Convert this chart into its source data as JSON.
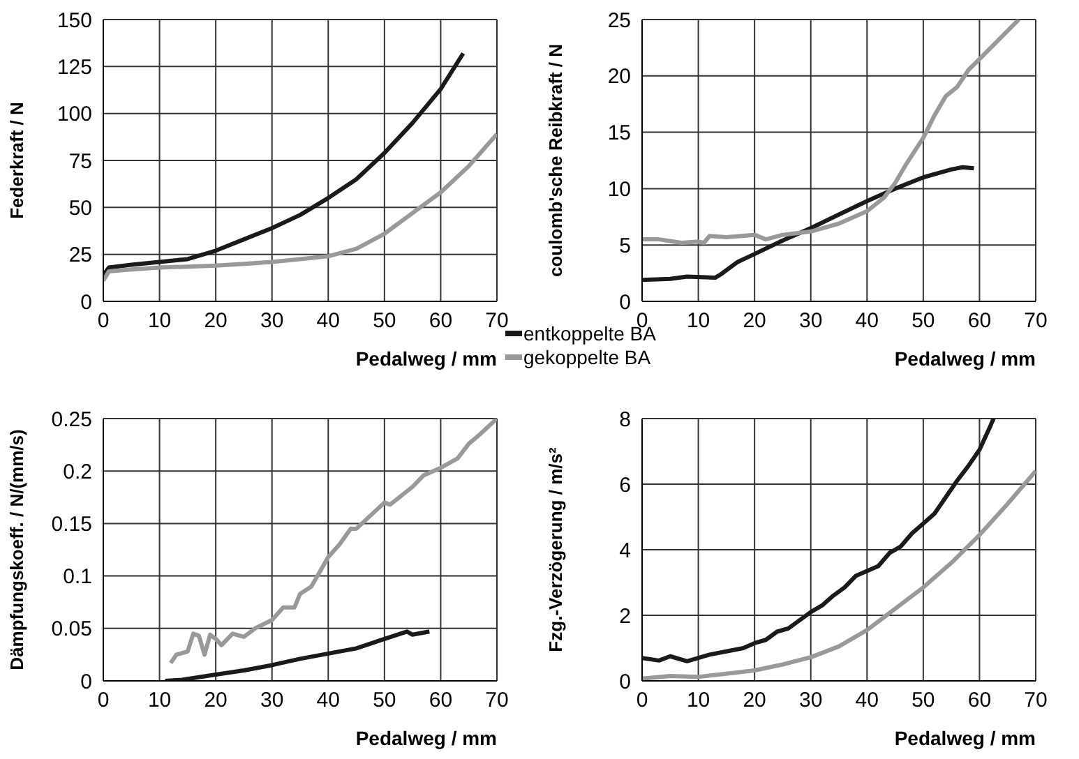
{
  "chart_data": [
    {
      "type": "line",
      "ylabel": "Federkraft / N",
      "xlabel": "Pedalweg / mm",
      "xlim": [
        0,
        70
      ],
      "xticks": [
        0,
        10,
        20,
        30,
        40,
        50,
        60,
        70
      ],
      "ylim": [
        0,
        150
      ],
      "yticks": [
        0,
        25,
        50,
        75,
        100,
        125,
        150
      ],
      "grid": true,
      "marker": "none",
      "line_style": "solid",
      "legend": "bottom right",
      "series": [
        {
          "name": "entkoppelte BA",
          "color": "#1a1a1a",
          "x": [
            0,
            1,
            5,
            10,
            15,
            20,
            25,
            30,
            35,
            40,
            45,
            50,
            55,
            60,
            64
          ],
          "values": [
            14,
            18,
            19.5,
            21,
            22.5,
            27,
            33,
            39,
            46,
            55,
            65,
            79,
            95,
            113,
            132
          ]
        },
        {
          "name": "gekoppelte BA",
          "color": "#999999",
          "x": [
            0,
            1,
            5,
            10,
            15,
            20,
            25,
            30,
            35,
            40,
            45,
            50,
            55,
            60,
            65,
            70
          ],
          "values": [
            11,
            16,
            17,
            18,
            18.5,
            19,
            20,
            21,
            22.5,
            24,
            28,
            36,
            47,
            58,
            72,
            89
          ]
        }
      ]
    },
    {
      "type": "line",
      "ylabel": "coulomb'sche Reibkraft / N",
      "xlabel": "Pedalweg / mm",
      "xlim": [
        0,
        70
      ],
      "xticks": [
        0,
        10,
        20,
        30,
        40,
        50,
        60,
        70
      ],
      "ylim": [
        0,
        25
      ],
      "yticks": [
        0,
        5,
        10,
        15,
        20,
        25
      ],
      "grid": true,
      "marker": "none",
      "line_style": "solid",
      "series": [
        {
          "color": "#1a1a1a",
          "x": [
            0,
            5,
            8,
            13,
            14,
            17,
            20,
            25,
            30,
            35,
            40,
            45,
            50,
            55,
            57,
            59
          ],
          "values": [
            1.9,
            2,
            2.2,
            2.1,
            2.4,
            3.5,
            4.2,
            5.4,
            6.5,
            7.7,
            8.9,
            10,
            11,
            11.7,
            11.9,
            11.8
          ]
        },
        {
          "color": "#999999",
          "x": [
            0,
            3,
            7,
            10,
            11,
            12,
            15,
            20,
            22,
            25,
            30,
            35,
            40,
            43,
            45,
            47,
            50,
            52,
            54,
            56,
            58,
            60,
            63,
            65,
            67
          ],
          "values": [
            5.5,
            5.5,
            5.2,
            5.3,
            5.2,
            5.8,
            5.7,
            5.9,
            5.5,
            5.9,
            6.2,
            6.9,
            8,
            9.2,
            10.5,
            12.2,
            14.5,
            16.5,
            18.2,
            19,
            20.5,
            21.5,
            23,
            24,
            25
          ]
        }
      ]
    },
    {
      "type": "line",
      "ylabel": "Dämpfungskoeff. / N/(mm/s)",
      "xlabel": "Pedalweg / mm",
      "xlim": [
        0,
        70
      ],
      "xticks": [
        0,
        10,
        20,
        30,
        40,
        50,
        60,
        70
      ],
      "ylim": [
        0,
        0.25
      ],
      "yticks": [
        0,
        0.05,
        0.1,
        0.15,
        0.2,
        0.25
      ],
      "grid": true,
      "marker": "none",
      "line_style": "solid",
      "series": [
        {
          "color": "#1a1a1a",
          "x": [
            11,
            14,
            20,
            25,
            30,
            35,
            40,
            45,
            50,
            54,
            55,
            58
          ],
          "values": [
            0,
            0.001,
            0.006,
            0.01,
            0.015,
            0.021,
            0.026,
            0.031,
            0.04,
            0.047,
            0.044,
            0.047
          ]
        },
        {
          "color": "#999999",
          "x": [
            12,
            13,
            15,
            16,
            17,
            18,
            19,
            20,
            21,
            23,
            25,
            27,
            30,
            32,
            34,
            35,
            37,
            40,
            42,
            44,
            45,
            47,
            50,
            51,
            55,
            57,
            60,
            63,
            65,
            67,
            70
          ],
          "values": [
            0.017,
            0.025,
            0.028,
            0.045,
            0.043,
            0.025,
            0.044,
            0.04,
            0.034,
            0.045,
            0.042,
            0.05,
            0.058,
            0.07,
            0.07,
            0.083,
            0.09,
            0.118,
            0.13,
            0.145,
            0.145,
            0.155,
            0.17,
            0.168,
            0.185,
            0.196,
            0.203,
            0.212,
            0.226,
            0.235,
            0.25
          ]
        }
      ]
    },
    {
      "type": "line",
      "ylabel": "Fzg.-Verzögerung / m/s²",
      "xlabel": "Pedalweg / mm",
      "xlim": [
        0,
        70
      ],
      "xticks": [
        0,
        10,
        20,
        30,
        40,
        50,
        60,
        70
      ],
      "ylim": [
        0,
        8
      ],
      "yticks": [
        0,
        2,
        4,
        6,
        8
      ],
      "grid": true,
      "marker": "none",
      "line_style": "solid",
      "series": [
        {
          "color": "#1a1a1a",
          "x": [
            0,
            3,
            5,
            8,
            10,
            12,
            15,
            18,
            20,
            22,
            24,
            26,
            28,
            30,
            32,
            34,
            36,
            38,
            40,
            42,
            44,
            46,
            48,
            50,
            52,
            54,
            56,
            58,
            60,
            62,
            62.5
          ],
          "values": [
            0.7,
            0.62,
            0.75,
            0.6,
            0.7,
            0.8,
            0.9,
            1,
            1.15,
            1.25,
            1.5,
            1.6,
            1.85,
            2.1,
            2.3,
            2.6,
            2.85,
            3.2,
            3.35,
            3.5,
            3.9,
            4.1,
            4.5,
            4.8,
            5.1,
            5.6,
            6.1,
            6.55,
            7.05,
            7.8,
            8
          ]
        },
        {
          "color": "#999999",
          "x": [
            0,
            5,
            10,
            15,
            20,
            25,
            30,
            35,
            40,
            45,
            50,
            55,
            60,
            65,
            70
          ],
          "values": [
            0.07,
            0.15,
            0.12,
            0.22,
            0.32,
            0.5,
            0.72,
            1.05,
            1.55,
            2.2,
            2.85,
            3.6,
            4.45,
            5.4,
            6.4
          ]
        }
      ]
    }
  ]
}
